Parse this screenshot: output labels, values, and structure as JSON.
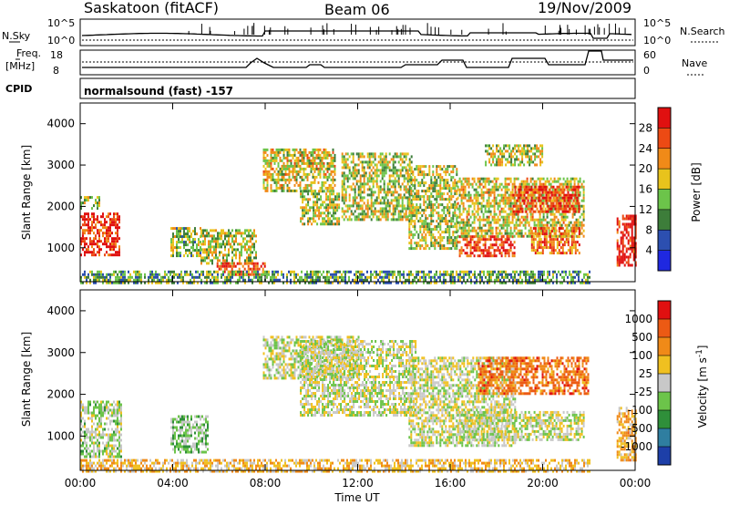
{
  "header": {
    "station": "Saskatoon (fitACF)",
    "beam": "Beam 06",
    "date": "19/Nov/2009"
  },
  "panels": {
    "nsky": {
      "left_label": "N.Sky",
      "tick_top": "10^5",
      "tick_bottom": "10^0",
      "right_label": "N.Search",
      "right_tick_top": "10^5",
      "right_tick_bottom": "10^0"
    },
    "freq": {
      "left_label_1": "Freq.",
      "left_label_2": "[MHz]",
      "tick_top": "18",
      "tick_bottom": "8",
      "right_label": "Nave",
      "right_tick_top": "60",
      "right_tick_bottom": "0"
    },
    "cpid": {
      "label": "CPID",
      "value": "normalsound (fast) -157"
    }
  },
  "colors": {
    "power": [
      "#1f28e0",
      "#2c4fb0",
      "#3d7d3a",
      "#6cc44a",
      "#e8c31c",
      "#f08a18",
      "#ec4a14",
      "#e01010"
    ],
    "velocity": [
      "#1d3fa8",
      "#2f7ea0",
      "#2f8f3a",
      "#6cc44a",
      "#c8c8c8",
      "#f0c020",
      "#f08a18",
      "#ec5a14",
      "#e01010"
    ],
    "ground_scatter": "#c8c8c8"
  },
  "chart_data": [
    {
      "type": "heatmap",
      "name": "power",
      "xlabel": "",
      "ylabel": "Slant Range [km]",
      "x_ticks": [
        "00:00",
        "04:00",
        "08:00",
        "12:00",
        "16:00",
        "20:00",
        "00:00"
      ],
      "y_ticks": [
        "1000",
        "2000",
        "3000",
        "4000"
      ],
      "xlim_hours": [
        0,
        24
      ],
      "ylim_km": [
        180,
        4500
      ],
      "colorbar": {
        "label": "Power [dB]",
        "ticks": [
          "4",
          "8",
          "12",
          "16",
          "20",
          "24",
          "28"
        ]
      },
      "echo_regions": [
        {
          "t0": 0.0,
          "t1": 1.7,
          "r0": 800,
          "r1": 1850,
          "level": 0.9
        },
        {
          "t0": 0.0,
          "t1": 0.8,
          "r0": 1950,
          "r1": 2250,
          "level": 0.45
        },
        {
          "t0": 3.9,
          "t1": 5.2,
          "r0": 800,
          "r1": 1500,
          "level": 0.45
        },
        {
          "t0": 5.2,
          "t1": 7.6,
          "r0": 650,
          "r1": 1450,
          "level": 0.5
        },
        {
          "t0": 5.9,
          "t1": 8.0,
          "r0": 350,
          "r1": 650,
          "level": 0.85
        },
        {
          "t0": 0.0,
          "t1": 22.0,
          "r0": 180,
          "r1": 450,
          "level": 0.35
        },
        {
          "t0": 7.9,
          "t1": 11.0,
          "r0": 2400,
          "r1": 3400,
          "level": 0.55
        },
        {
          "t0": 9.5,
          "t1": 11.2,
          "r0": 1600,
          "r1": 2400,
          "level": 0.5
        },
        {
          "t0": 11.3,
          "t1": 14.3,
          "r0": 1700,
          "r1": 3300,
          "level": 0.5
        },
        {
          "t0": 14.2,
          "t1": 16.3,
          "r0": 1000,
          "r1": 3000,
          "level": 0.5
        },
        {
          "t0": 16.3,
          "t1": 18.8,
          "r0": 800,
          "r1": 1300,
          "level": 0.85
        },
        {
          "t0": 16.3,
          "t1": 21.8,
          "r0": 1300,
          "r1": 2700,
          "level": 0.55
        },
        {
          "t0": 18.7,
          "t1": 21.6,
          "r0": 1900,
          "r1": 2500,
          "level": 0.85
        },
        {
          "t0": 19.5,
          "t1": 21.6,
          "r0": 900,
          "r1": 1500,
          "level": 0.75
        },
        {
          "t0": 17.5,
          "t1": 20.0,
          "r0": 3000,
          "r1": 3500,
          "level": 0.5
        },
        {
          "t0": 23.2,
          "t1": 24.0,
          "r0": 600,
          "r1": 1800,
          "level": 0.95
        }
      ]
    },
    {
      "type": "heatmap",
      "name": "velocity",
      "xlabel": "Time UT",
      "ylabel": "Slant Range [km]",
      "x_ticks": [
        "00:00",
        "04:00",
        "08:00",
        "12:00",
        "16:00",
        "20:00",
        "00:00"
      ],
      "y_ticks": [
        "1000",
        "2000",
        "3000",
        "4000"
      ],
      "xlim_hours": [
        0,
        24
      ],
      "ylim_km": [
        180,
        4500
      ],
      "colorbar": {
        "label": "Velocity [m s^-1]",
        "ticks": [
          "1000",
          "500",
          "100",
          "25",
          "-25",
          "-100",
          "-500",
          "-1000"
        ]
      },
      "echo_regions": [
        {
          "t0": 0.0,
          "t1": 1.8,
          "r0": 500,
          "r1": 1850,
          "level": 0.45
        },
        {
          "t0": 3.9,
          "t1": 5.5,
          "r0": 600,
          "r1": 1500,
          "level": 0.4
        },
        {
          "t0": 0.0,
          "t1": 22.0,
          "r0": 180,
          "r1": 450,
          "level": 0.62
        },
        {
          "t0": 7.9,
          "t1": 12.0,
          "r0": 2400,
          "r1": 3400,
          "level": 0.5
        },
        {
          "t0": 9.5,
          "t1": 14.5,
          "r0": 1500,
          "r1": 3300,
          "level": 0.5
        },
        {
          "t0": 14.2,
          "t1": 18.8,
          "r0": 800,
          "r1": 2900,
          "level": 0.5
        },
        {
          "t0": 16.3,
          "t1": 21.8,
          "r0": 900,
          "r1": 1600,
          "level": 0.5
        },
        {
          "t0": 17.2,
          "t1": 22.0,
          "r0": 2000,
          "r1": 2900,
          "level": 0.78
        },
        {
          "t0": 23.2,
          "t1": 24.0,
          "r0": 450,
          "r1": 1700,
          "level": 0.65
        }
      ]
    }
  ]
}
